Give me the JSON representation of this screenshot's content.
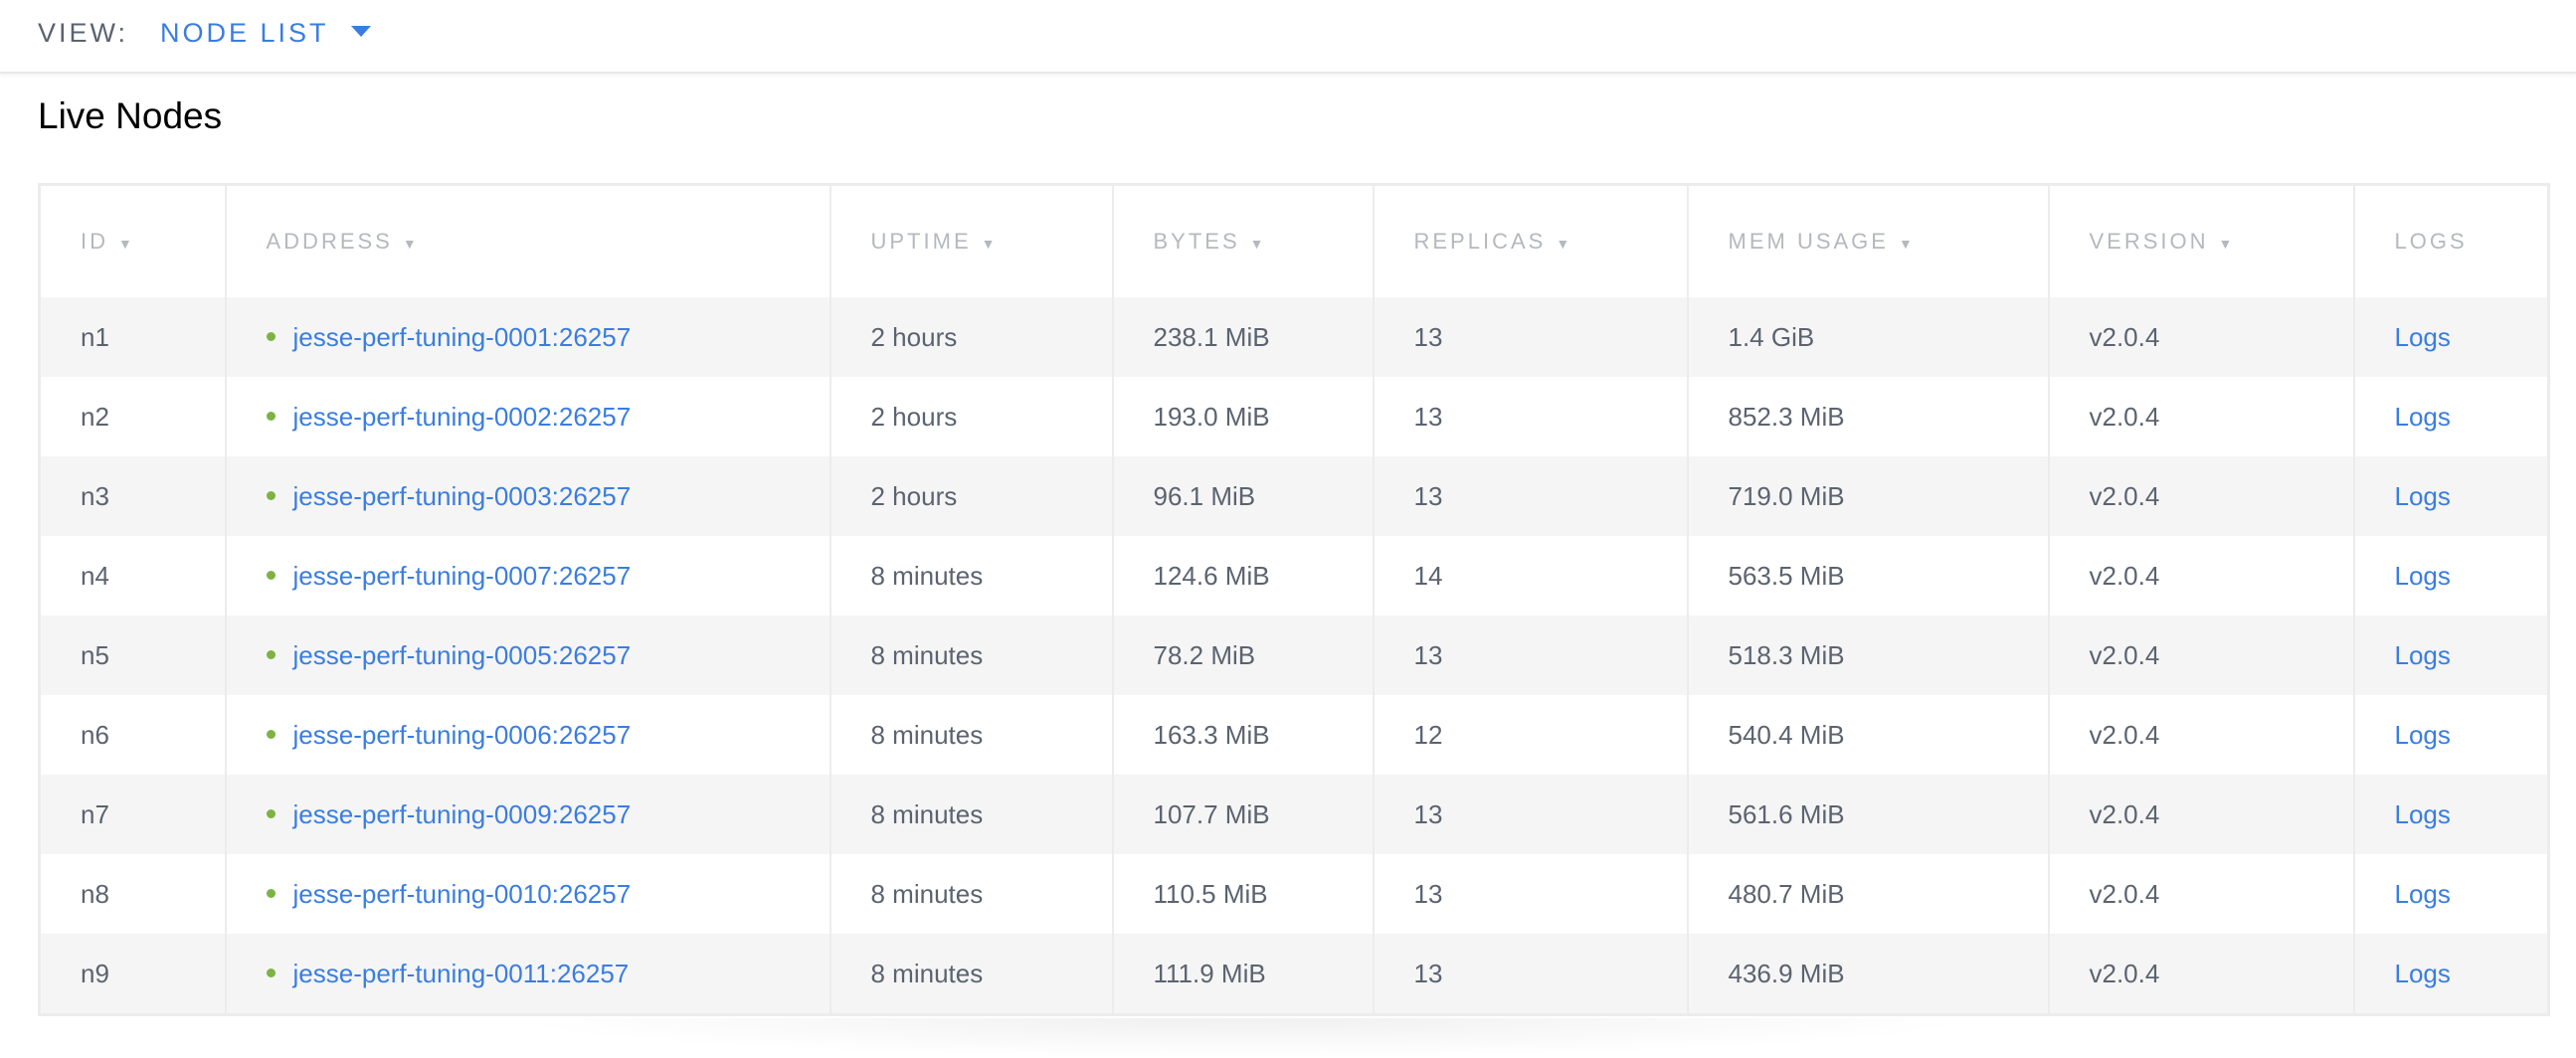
{
  "viewbar": {
    "label": "VIEW:",
    "selected": "NODE LIST"
  },
  "title": "Live Nodes",
  "colors": {
    "link": "#3a7de1",
    "status_live": "#7cb342"
  },
  "columns": [
    "ID",
    "ADDRESS",
    "UPTIME",
    "BYTES",
    "REPLICAS",
    "MEM USAGE",
    "VERSION",
    "LOGS"
  ],
  "sort_indicator": "▼",
  "rows": [
    {
      "id": "n1",
      "address": "jesse-perf-tuning-0001:26257",
      "uptime": "2 hours",
      "bytes": "238.1 MiB",
      "replicas": "13",
      "mem": "1.4 GiB",
      "version": "v2.0.4",
      "logs": "Logs"
    },
    {
      "id": "n2",
      "address": "jesse-perf-tuning-0002:26257",
      "uptime": "2 hours",
      "bytes": "193.0 MiB",
      "replicas": "13",
      "mem": "852.3 MiB",
      "version": "v2.0.4",
      "logs": "Logs"
    },
    {
      "id": "n3",
      "address": "jesse-perf-tuning-0003:26257",
      "uptime": "2 hours",
      "bytes": "96.1 MiB",
      "replicas": "13",
      "mem": "719.0 MiB",
      "version": "v2.0.4",
      "logs": "Logs"
    },
    {
      "id": "n4",
      "address": "jesse-perf-tuning-0007:26257",
      "uptime": "8 minutes",
      "bytes": "124.6 MiB",
      "replicas": "14",
      "mem": "563.5 MiB",
      "version": "v2.0.4",
      "logs": "Logs"
    },
    {
      "id": "n5",
      "address": "jesse-perf-tuning-0005:26257",
      "uptime": "8 minutes",
      "bytes": "78.2 MiB",
      "replicas": "13",
      "mem": "518.3 MiB",
      "version": "v2.0.4",
      "logs": "Logs"
    },
    {
      "id": "n6",
      "address": "jesse-perf-tuning-0006:26257",
      "uptime": "8 minutes",
      "bytes": "163.3 MiB",
      "replicas": "12",
      "mem": "540.4 MiB",
      "version": "v2.0.4",
      "logs": "Logs"
    },
    {
      "id": "n7",
      "address": "jesse-perf-tuning-0009:26257",
      "uptime": "8 minutes",
      "bytes": "107.7 MiB",
      "replicas": "13",
      "mem": "561.6 MiB",
      "version": "v2.0.4",
      "logs": "Logs"
    },
    {
      "id": "n8",
      "address": "jesse-perf-tuning-0010:26257",
      "uptime": "8 minutes",
      "bytes": "110.5 MiB",
      "replicas": "13",
      "mem": "480.7 MiB",
      "version": "v2.0.4",
      "logs": "Logs"
    },
    {
      "id": "n9",
      "address": "jesse-perf-tuning-0011:26257",
      "uptime": "8 minutes",
      "bytes": "111.9 MiB",
      "replicas": "13",
      "mem": "436.9 MiB",
      "version": "v2.0.4",
      "logs": "Logs"
    }
  ]
}
